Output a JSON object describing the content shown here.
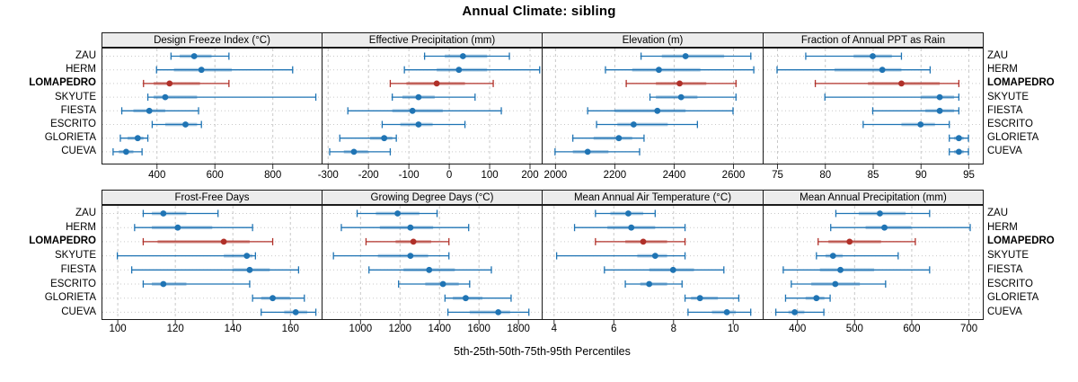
{
  "chart_data": {
    "type": "scatter",
    "variant": "trellis-percentile-dotplot",
    "title": "Annual Climate: sibling",
    "caption": "5th-25th-50th-75th-95th Percentiles",
    "percentiles": [
      5,
      25,
      50,
      75,
      95
    ],
    "sites": [
      "ZAU",
      "HERM",
      "LOMAPEDRO",
      "SKYUTE",
      "FIESTA",
      "ESCRITO",
      "GLORIETA",
      "CUEVA"
    ],
    "highlight_site": "LOMAPEDRO",
    "legend_position": "none",
    "grid": true,
    "style": {
      "series_blue": "#1f74b4",
      "series_red": "#b03029",
      "band_opacity": 0.35,
      "strip_bg": "#ececec",
      "grid_color": "#c9c9c9",
      "border_color": "#1a1a1a"
    },
    "panels": [
      {
        "title": "Design Freeze Index (°C)",
        "row": 0,
        "col": 0,
        "xlim": [
          210,
          970
        ],
        "ticks": [
          400,
          600,
          800
        ],
        "series": {
          "ZAU": [
            450,
            480,
            530,
            590,
            650
          ],
          "HERM": [
            400,
            460,
            555,
            660,
            870
          ],
          "LOMAPEDRO": [
            355,
            390,
            445,
            550,
            650
          ],
          "SKYUTE": [
            370,
            390,
            430,
            540,
            950
          ],
          "FIESTA": [
            280,
            320,
            375,
            430,
            545
          ],
          "ESCRITO": [
            385,
            430,
            500,
            540,
            555
          ],
          "GLORIETA": [
            275,
            300,
            335,
            355,
            370
          ],
          "CUEVA": [
            250,
            270,
            295,
            320,
            350
          ]
        }
      },
      {
        "title": "Effective Precipitation (mm)",
        "row": 0,
        "col": 1,
        "xlim": [
          -315,
          230
        ],
        "ticks": [
          -300,
          -200,
          -100,
          0,
          100,
          200
        ],
        "series": {
          "ZAU": [
            -60,
            -10,
            35,
            95,
            150
          ],
          "HERM": [
            -110,
            -30,
            25,
            95,
            225
          ],
          "LOMAPEDRO": [
            -145,
            -105,
            -30,
            40,
            110
          ],
          "SKYUTE": [
            -140,
            -115,
            -75,
            -35,
            65
          ],
          "FIESTA": [
            -250,
            -140,
            -90,
            -15,
            130
          ],
          "ESCRITO": [
            -165,
            -120,
            -75,
            -40,
            40
          ],
          "GLORIETA": [
            -270,
            -195,
            -160,
            -140,
            -130
          ],
          "CUEVA": [
            -295,
            -260,
            -235,
            -200,
            -145
          ]
        }
      },
      {
        "title": "Elevation (m)",
        "row": 0,
        "col": 2,
        "xlim": [
          1955,
          2700
        ],
        "ticks": [
          2000,
          2200,
          2400,
          2600
        ],
        "series": {
          "ZAU": [
            2290,
            2360,
            2440,
            2570,
            2660
          ],
          "HERM": [
            2170,
            2260,
            2350,
            2490,
            2670
          ],
          "LOMAPEDRO": [
            2240,
            2340,
            2420,
            2510,
            2610
          ],
          "SKYUTE": [
            2320,
            2340,
            2425,
            2480,
            2610
          ],
          "FIESTA": [
            2110,
            2200,
            2345,
            2440,
            2600
          ],
          "ESCRITO": [
            2140,
            2210,
            2265,
            2380,
            2480
          ],
          "GLORIETA": [
            2060,
            2130,
            2215,
            2260,
            2300
          ],
          "CUEVA": [
            2000,
            2060,
            2110,
            2180,
            2285
          ]
        }
      },
      {
        "title": "Fraction of Annual PPT as Rain",
        "row": 0,
        "col": 3,
        "xlim": [
          73.5,
          96.5
        ],
        "ticks": [
          75,
          80,
          85,
          90,
          95
        ],
        "series": {
          "ZAU": [
            78,
            83,
            85,
            87,
            88
          ],
          "HERM": [
            75,
            81,
            86,
            88,
            91
          ],
          "LOMAPEDRO": [
            79,
            84.5,
            88,
            92,
            94
          ],
          "SKYUTE": [
            80,
            90,
            92,
            93.5,
            94
          ],
          "FIESTA": [
            85,
            90.5,
            92,
            93.5,
            94
          ],
          "ESCRITO": [
            84,
            88,
            90,
            91.5,
            93
          ],
          "GLORIETA": [
            93,
            93.5,
            94,
            94.5,
            95
          ],
          "CUEVA": [
            93,
            93.5,
            94,
            94.5,
            95
          ]
        }
      },
      {
        "title": "Frost-Free Days",
        "row": 1,
        "col": 0,
        "xlim": [
          94.5,
          171
        ],
        "ticks": [
          100,
          120,
          140,
          160
        ],
        "series": {
          "ZAU": [
            109,
            112,
            116,
            124,
            135
          ],
          "HERM": [
            106,
            112,
            121,
            133,
            147
          ],
          "LOMAPEDRO": [
            109,
            114,
            137,
            146,
            154
          ],
          "SKYUTE": [
            100,
            137,
            145,
            147,
            148
          ],
          "FIESTA": [
            105,
            140,
            146,
            153,
            163
          ],
          "ESCRITO": [
            109,
            112,
            116,
            124,
            146
          ],
          "GLORIETA": [
            147,
            150,
            154,
            160,
            165
          ],
          "CUEVA": [
            150,
            158,
            162,
            166,
            169
          ]
        }
      },
      {
        "title": "Growing Degree Days (°C)",
        "row": 1,
        "col": 1,
        "xlim": [
          805,
          1920
        ],
        "ticks": [
          1000,
          1200,
          1400,
          1600,
          1800
        ],
        "series": {
          "ZAU": [
            985,
            1080,
            1190,
            1300,
            1390
          ],
          "HERM": [
            905,
            1100,
            1255,
            1370,
            1550
          ],
          "LOMAPEDRO": [
            1030,
            1180,
            1270,
            1360,
            1450
          ],
          "SKYUTE": [
            865,
            1090,
            1255,
            1345,
            1450
          ],
          "FIESTA": [
            1045,
            1220,
            1350,
            1480,
            1665
          ],
          "ESCRITO": [
            1195,
            1330,
            1420,
            1500,
            1555
          ],
          "GLORIETA": [
            1430,
            1470,
            1535,
            1620,
            1765
          ],
          "CUEVA": [
            1445,
            1555,
            1700,
            1760,
            1855
          ]
        }
      },
      {
        "title": "Mean Annual Air Temperature (°C)",
        "row": 1,
        "col": 2,
        "xlim": [
          3.6,
          11.0
        ],
        "ticks": [
          4,
          6,
          8,
          10
        ],
        "series": {
          "ZAU": [
            5.4,
            5.9,
            6.5,
            7.0,
            7.4
          ],
          "HERM": [
            4.7,
            5.8,
            6.6,
            7.4,
            8.4
          ],
          "LOMAPEDRO": [
            5.4,
            6.4,
            7.0,
            7.8,
            8.4
          ],
          "SKYUTE": [
            4.1,
            6.8,
            7.4,
            7.8,
            8.4
          ],
          "FIESTA": [
            5.7,
            7.2,
            8.0,
            8.7,
            9.7
          ],
          "ESCRITO": [
            6.4,
            6.9,
            7.2,
            7.8,
            8.3
          ],
          "GLORIETA": [
            8.4,
            8.6,
            8.9,
            9.5,
            10.2
          ],
          "CUEVA": [
            8.5,
            9.3,
            9.8,
            10.1,
            10.6
          ]
        }
      },
      {
        "title": "Mean Annual Precipitation (mm)",
        "row": 1,
        "col": 3,
        "xlim": [
          340,
          725
        ],
        "ticks": [
          400,
          500,
          600,
          700
        ],
        "series": {
          "ZAU": [
            468,
            508,
            545,
            590,
            632
          ],
          "HERM": [
            459,
            520,
            553,
            600,
            703
          ],
          "LOMAPEDRO": [
            437,
            455,
            492,
            547,
            607
          ],
          "SKYUTE": [
            434,
            450,
            463,
            480,
            577
          ],
          "FIESTA": [
            376,
            440,
            476,
            535,
            632
          ],
          "ESCRITO": [
            390,
            425,
            467,
            510,
            555
          ],
          "GLORIETA": [
            380,
            415,
            434,
            448,
            458
          ],
          "CUEVA": [
            363,
            385,
            396,
            413,
            447
          ]
        }
      }
    ]
  }
}
